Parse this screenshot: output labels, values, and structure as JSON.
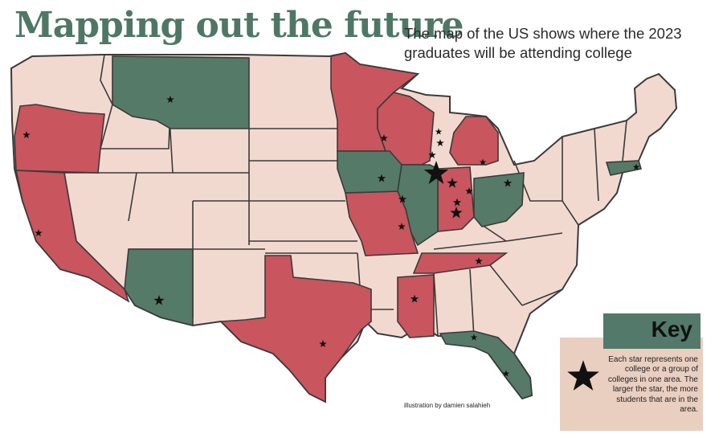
{
  "header": {
    "title": "Mapping out the future",
    "subtitle": "The map of the US shows where the 2023 graduates will be attending college"
  },
  "credit": "illustration by damien salahieh",
  "key": {
    "title": "Key",
    "description": "Each star represents one college or a group of colleges in one area. The larger the star, the more students that are in the area."
  },
  "colors": {
    "light_state": "#f2d9cf",
    "red_state": "#c9555e",
    "green_state": "#557a68",
    "border": "#3a3a3a",
    "title": "#4f7766",
    "key_bg": "#e9cfc0",
    "key_header": "#52796a"
  },
  "legend_colors": {
    "red": [
      "Oregon",
      "California",
      "Texas",
      "Minnesota",
      "Wisconsin",
      "Missouri",
      "Michigan",
      "Indiana",
      "Tennessee",
      "Mississippi"
    ],
    "green": [
      "Montana",
      "Arizona",
      "Iowa",
      "Illinois",
      "Ohio",
      "Florida",
      "Massachusetts"
    ]
  }
}
